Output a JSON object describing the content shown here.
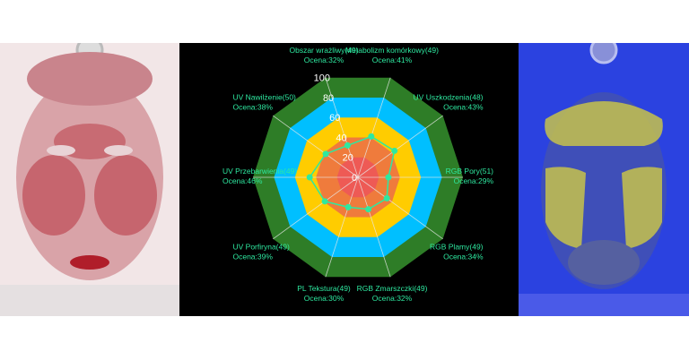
{
  "chart_data": {
    "type": "radar",
    "axes": [
      {
        "name": "RGB Pory(51)",
        "score_label": "Ocena:29%",
        "value": 29
      },
      {
        "name": "UV Uszkodzenia(48)",
        "score_label": "Ocena:43%",
        "value": 43
      },
      {
        "name": "Metabolizm komórkowy(49)",
        "score_label": "Ocena:41%",
        "value": 41
      },
      {
        "name": "Obszar wrażliwy(49)",
        "score_label": "Ocena:32%",
        "value": 32
      },
      {
        "name": "UV Nawilżenie(50)",
        "score_label": "Ocena:38%",
        "value": 38
      },
      {
        "name": "UV Przebarwienia(49)",
        "score_label": "Ocena:46%",
        "value": 46
      },
      {
        "name": "UV Porfiryna(49)",
        "score_label": "Ocena:39%",
        "value": 39
      },
      {
        "name": "PL Tekstura(49)",
        "score_label": "Ocena:30%",
        "value": 30
      },
      {
        "name": "RGB Zmarszczki(49)",
        "score_label": "Ocena:32%",
        "value": 32
      },
      {
        "name": "RGB Plamy(49)",
        "score_label": "Ocena:34%",
        "value": 34
      }
    ],
    "rings": [
      {
        "value": 100,
        "color": "#2e7d27"
      },
      {
        "value": 80,
        "color": "#00bfff"
      },
      {
        "value": 60,
        "color": "#ffcc00"
      },
      {
        "value": 40,
        "color": "#ef7b3c"
      },
      {
        "value": 20,
        "color": "#ee5a55"
      }
    ],
    "tick_labels": [
      "0",
      "20",
      "40",
      "60",
      "80",
      "100"
    ],
    "range": [
      0,
      100
    ],
    "series_color": "#2ee8a0",
    "label_color": "#2ee8a0"
  }
}
